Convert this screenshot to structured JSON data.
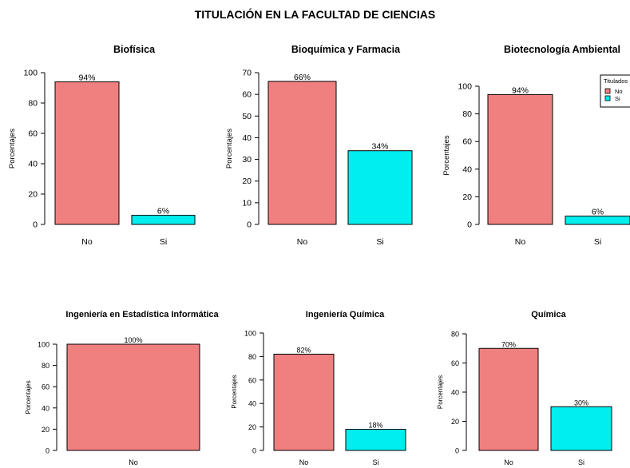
{
  "title": "TITULACIÓN EN LA FACULTAD DE CIENCIAS",
  "colors": {
    "No": "#f08080",
    "Si": "#00eeee"
  },
  "chart_data": [
    {
      "type": "bar",
      "title": "Biofísica",
      "ylabel": "Porcentajes",
      "categories": [
        "No",
        "Si"
      ],
      "values": [
        94,
        6
      ],
      "labels": [
        "94%",
        "6%"
      ],
      "ylim": [
        0,
        100
      ],
      "yticks": [
        0,
        20,
        40,
        60,
        80,
        100
      ]
    },
    {
      "type": "bar",
      "title": "Bioquímica y Farmacia",
      "ylabel": "Porcentajes",
      "categories": [
        "No",
        "Si"
      ],
      "values": [
        66,
        34
      ],
      "labels": [
        "66%",
        "34%"
      ],
      "ylim": [
        0,
        70
      ],
      "yticks": [
        0,
        10,
        20,
        30,
        40,
        50,
        60,
        70
      ]
    },
    {
      "type": "bar",
      "title": "Biotecnología Ambiental",
      "ylabel": "Porcentajes",
      "categories": [
        "No",
        "Si"
      ],
      "values": [
        94,
        6
      ],
      "labels": [
        "94%",
        "6%"
      ],
      "ylim": [
        0,
        100
      ],
      "yticks": [
        0,
        20,
        40,
        60,
        80,
        100
      ],
      "legend": {
        "title": "Titulados",
        "entries": [
          "No",
          "Si"
        ],
        "position": "top-right"
      }
    },
    {
      "type": "bar",
      "title": "Ingeniería en Estadística Informática",
      "ylabel": "Porcentajes",
      "categories": [
        "No"
      ],
      "values": [
        100
      ],
      "labels": [
        "100%"
      ],
      "ylim": [
        0,
        100
      ],
      "yticks": [
        0,
        20,
        40,
        60,
        80,
        100
      ]
    },
    {
      "type": "bar",
      "title": "Ingeniería Química",
      "ylabel": "Porcentajes",
      "categories": [
        "No",
        "Si"
      ],
      "values": [
        82,
        18
      ],
      "labels": [
        "82%",
        "18%"
      ],
      "ylim": [
        0,
        100
      ],
      "yticks": [
        0,
        20,
        40,
        60,
        80,
        100
      ]
    },
    {
      "type": "bar",
      "title": "Química",
      "ylabel": "Porcentajes",
      "categories": [
        "No",
        "Si"
      ],
      "values": [
        70,
        30
      ],
      "labels": [
        "70%",
        "30%"
      ],
      "ylim": [
        0,
        80
      ],
      "yticks": [
        0,
        20,
        40,
        60,
        80
      ]
    }
  ]
}
